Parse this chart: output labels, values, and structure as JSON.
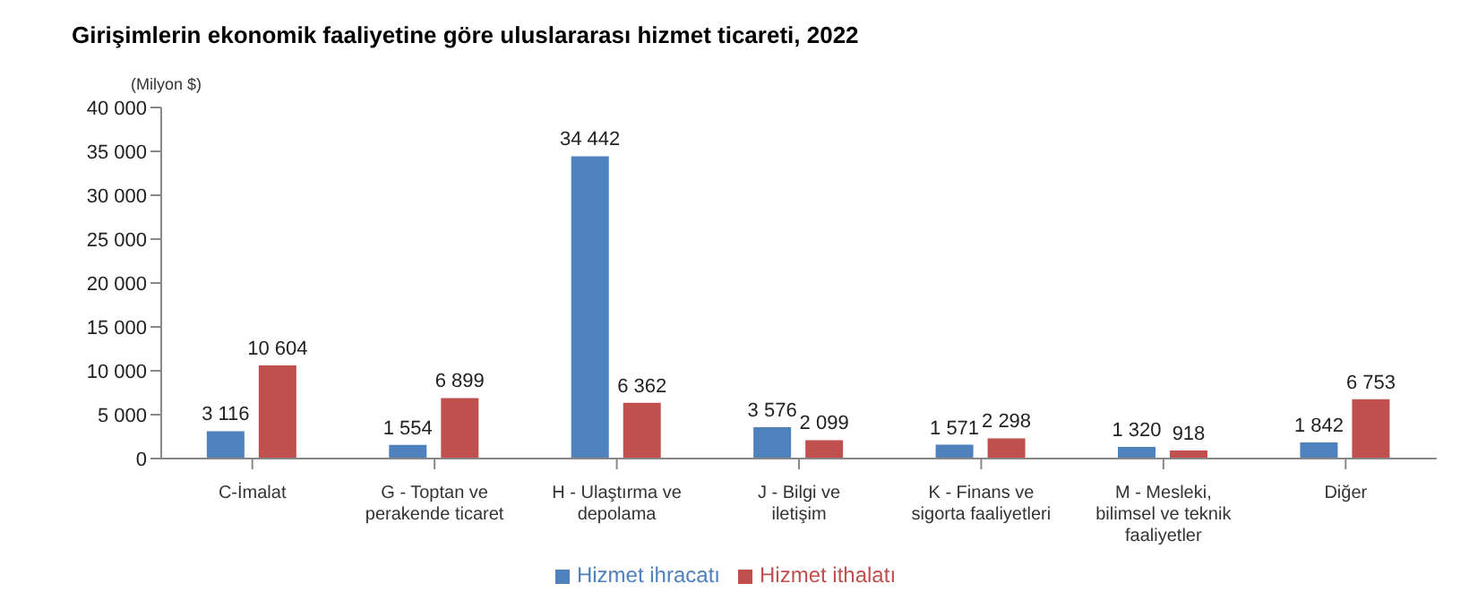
{
  "chart_data": {
    "type": "bar",
    "title": "Girişimlerin ekonomik faaliyetine göre uluslararası hizmet ticareti, 2022",
    "ylabel": "(Milyon  $)",
    "categories": [
      "C-İmalat",
      "G - Toptan ve perakende ticaret",
      "H - Ulaştırma ve depolama",
      "J - Bilgi ve iletişim",
      "K - Finans ve sigorta faaliyetleri",
      "M - Mesleki, bilimsel ve teknik faaliyetler",
      "Diğer"
    ],
    "series": [
      {
        "name": "Hizmet ihracatı",
        "color": "#4f81bd",
        "values": [
          3116,
          1554,
          34442,
          3576,
          1571,
          1320,
          1842
        ],
        "value_labels": [
          "3 116",
          "1 554",
          "34 442",
          "3 576",
          "1 571",
          "1 320",
          "1 842"
        ]
      },
      {
        "name": "Hizmet ithalatı",
        "color": "#c0504d",
        "values": [
          10604,
          6899,
          6362,
          2099,
          2298,
          918,
          6753
        ],
        "value_labels": [
          "10 604",
          "6 899",
          "6 362",
          "2 099",
          "2 298",
          "918",
          "6 753"
        ]
      }
    ],
    "ylim": [
      0,
      40000
    ],
    "yticks": [
      {
        "value": 0,
        "label": "0"
      },
      {
        "value": 5000,
        "label": "5 000"
      },
      {
        "value": 10000,
        "label": "10 000"
      },
      {
        "value": 15000,
        "label": "15 000"
      },
      {
        "value": 20000,
        "label": "20 000"
      },
      {
        "value": 25000,
        "label": "25 000"
      },
      {
        "value": 30000,
        "label": "30 000"
      },
      {
        "value": 35000,
        "label": "35 000"
      },
      {
        "value": 40000,
        "label": "40 000"
      }
    ],
    "grid": false,
    "legend": "bottom"
  }
}
